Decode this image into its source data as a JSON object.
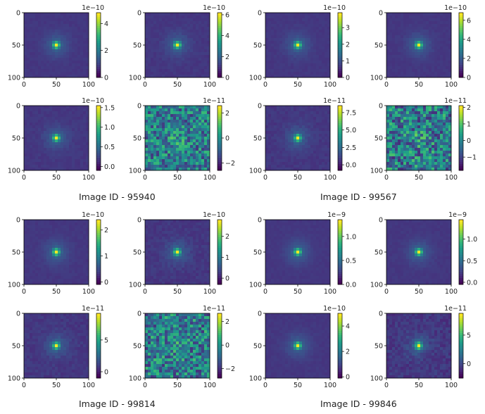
{
  "chart_data": [
    {
      "type": "heatmap",
      "axes_ticks": [
        "0",
        "50",
        "100"
      ],
      "colorbar": {
        "ticks": [
          "0",
          "2",
          "4"
        ],
        "exponent": "1e−10",
        "range": [
          0,
          4.8
        ]
      },
      "style": "psf",
      "noise": 0.15
    },
    {
      "type": "heatmap",
      "axes_ticks": [
        "0",
        "50",
        "100"
      ],
      "colorbar": {
        "ticks": [
          "0",
          "2",
          "4",
          "6"
        ],
        "exponent": "1e−10",
        "range": [
          0,
          6.2
        ]
      },
      "style": "psf",
      "noise": 0.2
    },
    {
      "type": "heatmap",
      "axes_ticks": [
        "0",
        "50",
        "100"
      ],
      "colorbar": {
        "ticks": [
          "0",
          "1",
          "2",
          "3"
        ],
        "exponent": "1e−10",
        "range": [
          0,
          3.9
        ]
      },
      "style": "psf",
      "noise": 0.15
    },
    {
      "type": "heatmap",
      "axes_ticks": [
        "0",
        "50",
        "100"
      ],
      "colorbar": {
        "ticks": [
          "0",
          "2",
          "4",
          "6"
        ],
        "exponent": "1e−10",
        "range": [
          0,
          6.8
        ]
      },
      "style": "psf",
      "noise": 0.15
    },
    {
      "type": "heatmap",
      "axes_ticks": [
        "0",
        "50",
        "100"
      ],
      "colorbar": {
        "ticks": [
          "0.0",
          "0.5",
          "1.0",
          "1.5"
        ],
        "exponent": "1e−10",
        "range": [
          -0.1,
          1.55
        ]
      },
      "style": "psf",
      "noise": 0.2
    },
    {
      "type": "heatmap",
      "axes_ticks": [
        "0",
        "50",
        "100"
      ],
      "colorbar": {
        "ticks": [
          "−2",
          "0",
          "2"
        ],
        "exponent": "1e−11",
        "range": [
          -2.6,
          2.6
        ]
      },
      "style": "noise",
      "noise": 0.8
    },
    {
      "type": "heatmap",
      "axes_ticks": [
        "0",
        "50",
        "100"
      ],
      "colorbar": {
        "ticks": [
          "0.0",
          "2.5",
          "5.0",
          "7.5"
        ],
        "exponent": "1e−11",
        "range": [
          -0.8,
          8.5
        ]
      },
      "style": "psf",
      "noise": 0.25
    },
    {
      "type": "heatmap",
      "axes_ticks": [
        "0",
        "50",
        "100"
      ],
      "colorbar": {
        "ticks": [
          "−1",
          "0",
          "1",
          "2"
        ],
        "exponent": "1e−11",
        "range": [
          -1.8,
          2.1
        ]
      },
      "style": "noise",
      "noise": 0.9
    },
    {
      "type": "heatmap",
      "axes_ticks": [
        "0",
        "50",
        "100"
      ],
      "colorbar": {
        "ticks": [
          "0",
          "1",
          "2"
        ],
        "exponent": "1e−10",
        "range": [
          -0.1,
          2.4
        ]
      },
      "style": "psf",
      "noise": 0.15
    },
    {
      "type": "heatmap",
      "axes_ticks": [
        "0",
        "50",
        "100"
      ],
      "colorbar": {
        "ticks": [
          "0",
          "1",
          "2"
        ],
        "exponent": "1e−10",
        "range": [
          -0.3,
          2.8
        ]
      },
      "style": "psf",
      "noise": 0.3
    },
    {
      "type": "heatmap",
      "axes_ticks": [
        "0",
        "50",
        "100"
      ],
      "colorbar": {
        "ticks": [
          "0.0",
          "0.5",
          "1.0"
        ],
        "exponent": "1e−9",
        "range": [
          0,
          1.35
        ]
      },
      "style": "psf",
      "noise": 0.12
    },
    {
      "type": "heatmap",
      "axes_ticks": [
        "0",
        "50",
        "100"
      ],
      "colorbar": {
        "ticks": [
          "0.0",
          "0.5",
          "1.0"
        ],
        "exponent": "1e−9",
        "range": [
          -0.05,
          1.45
        ]
      },
      "style": "psf",
      "noise": 0.15
    },
    {
      "type": "heatmap",
      "axes_ticks": [
        "0",
        "50",
        "100"
      ],
      "colorbar": {
        "ticks": [
          "0",
          "5"
        ],
        "exponent": "1e−11",
        "range": [
          -1,
          9.2
        ]
      },
      "style": "psf",
      "noise": 0.3
    },
    {
      "type": "heatmap",
      "axes_ticks": [
        "0",
        "50",
        "100"
      ],
      "colorbar": {
        "ticks": [
          "−2",
          "0",
          "2"
        ],
        "exponent": "1e−11",
        "range": [
          -2.8,
          2.7
        ]
      },
      "style": "noise",
      "noise": 0.85
    },
    {
      "type": "heatmap",
      "axes_ticks": [
        "0",
        "50",
        "100"
      ],
      "colorbar": {
        "ticks": [
          "0",
          "2",
          "4"
        ],
        "exponent": "1e−10",
        "range": [
          -0.1,
          5.0
        ]
      },
      "style": "psf",
      "noise": 0.15
    },
    {
      "type": "heatmap",
      "axes_ticks": [
        "0",
        "50",
        "100"
      ],
      "colorbar": {
        "ticks": [
          "0",
          "5"
        ],
        "exponent": "1e−11",
        "range": [
          -2.5,
          8.8
        ]
      },
      "style": "psf",
      "noise": 0.5
    }
  ],
  "captions": [
    "Image ID - 95940",
    "Image ID - 99567",
    "Image ID - 99814",
    "Image ID - 99846"
  ],
  "colors": {
    "cmap": "viridis",
    "axis": "#000000",
    "text": "#222222"
  }
}
